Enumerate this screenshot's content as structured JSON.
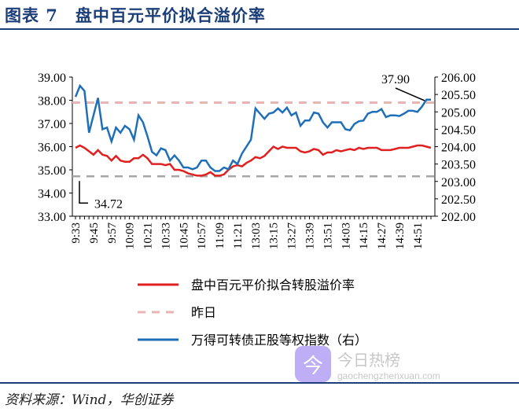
{
  "title": "图表 7　盘中百元平价拟合溢价率",
  "source": "资料来源：Wind，华创证券",
  "watermark": {
    "name": "今日热榜",
    "url": "gaochengzhenxuan.com"
  },
  "chart_data": {
    "type": "line",
    "title": "盘中百元平价拟合溢价率",
    "left_axis": {
      "range": [
        33,
        39
      ],
      "ticks": [
        "33.00",
        "34.00",
        "35.00",
        "36.00",
        "37.00",
        "38.00",
        "39.00"
      ]
    },
    "right_axis": {
      "range": [
        202,
        206
      ],
      "ticks": [
        "202.00",
        "202.50",
        "203.00",
        "203.50",
        "204.00",
        "204.50",
        "205.00",
        "205.50",
        "206.00"
      ]
    },
    "x_tick_labels": [
      "9:33",
      "9:45",
      "9:57",
      "10:09",
      "10:21",
      "10:33",
      "10:45",
      "10:57",
      "11:09",
      "11:21",
      "13:03",
      "13:15",
      "13:27",
      "13:39",
      "13:51",
      "14:03",
      "14:15",
      "14:27",
      "14:39",
      "14:51"
    ],
    "colors": {
      "premium": "#e02020",
      "yesterday": "#e8b4b4",
      "index": "#1f6fb8",
      "low": "#a6a6a6"
    },
    "annotations": [
      {
        "text": "37.90",
        "value": 37.9
      },
      {
        "text": "34.72",
        "value": 34.72
      }
    ],
    "legend": [
      "盘中百元平价拟合转股溢价率",
      "昨日",
      "万得可转债正股等权指数（右）"
    ],
    "series": [
      {
        "name": "盘中百元平价拟合转股溢价率",
        "axis": "left",
        "values": [
          35.95,
          36.05,
          35.95,
          35.8,
          35.65,
          35.85,
          35.65,
          35.6,
          35.4,
          35.6,
          35.4,
          35.35,
          35.35,
          35.5,
          35.5,
          35.65,
          35.5,
          35.25,
          35.25,
          35.25,
          35.2,
          35.25,
          35.0,
          35.0,
          34.95,
          34.85,
          34.8,
          34.75,
          34.75,
          34.8,
          34.9,
          34.75,
          34.75,
          34.8,
          35.0,
          35.15,
          35.2,
          35.15,
          35.3,
          35.4,
          35.55,
          35.5,
          35.6,
          35.8,
          36.0,
          35.9,
          36.0,
          35.95,
          35.95,
          35.95,
          35.8,
          35.75,
          35.8,
          35.9,
          35.85,
          35.65,
          35.75,
          35.75,
          35.85,
          35.8,
          35.85,
          35.9,
          35.85,
          35.95,
          35.9,
          35.95,
          35.95,
          35.95,
          35.85,
          35.85,
          35.85,
          35.9,
          35.95,
          35.95,
          35.95,
          36.0,
          36.05,
          36.05,
          36.0,
          35.95
        ]
      },
      {
        "name": "昨日",
        "axis": "left",
        "constant": 37.9
      },
      {
        "name": "万得可转债正股等权指数（右）",
        "axis": "right",
        "values": [
          205.43,
          205.75,
          205.6,
          204.4,
          204.9,
          205.4,
          204.5,
          204.55,
          204.15,
          204.55,
          204.4,
          204.6,
          204.5,
          204.2,
          204.9,
          204.7,
          204.3,
          203.85,
          203.75,
          203.95,
          203.9,
          203.6,
          203.75,
          203.6,
          203.4,
          203.4,
          203.35,
          203.4,
          203.6,
          203.6,
          203.4,
          203.3,
          203.3,
          203.4,
          203.35,
          203.6,
          203.5,
          203.8,
          204.0,
          204.2,
          205.1,
          204.95,
          204.8,
          204.95,
          204.98,
          205.1,
          204.98,
          205.12,
          204.9,
          204.98,
          204.6,
          204.75,
          204.75,
          204.98,
          204.95,
          204.7,
          204.55,
          204.7,
          204.7,
          204.7,
          204.5,
          204.47,
          204.65,
          204.73,
          204.75,
          204.95,
          205.0,
          205.0,
          205.08,
          204.85,
          204.9,
          204.9,
          204.88,
          204.95,
          205.03,
          205.03,
          205.0,
          205.15,
          205.35,
          205.35
        ]
      }
    ]
  }
}
